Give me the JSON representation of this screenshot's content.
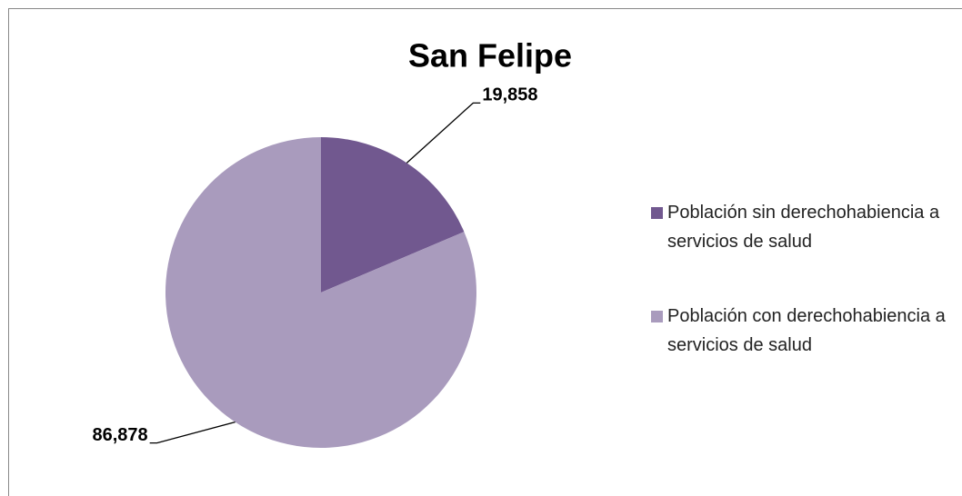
{
  "chart_data": {
    "type": "pie",
    "title": "San Felipe",
    "categories": [
      "Población sin derechohabiencia a servicios de salud",
      "Población con derechohabiencia a servicios de salud"
    ],
    "values": [
      19858,
      86878
    ],
    "value_labels": [
      "19,858",
      "86,878"
    ],
    "colors": [
      "#71588f",
      "#a99bbd"
    ]
  }
}
